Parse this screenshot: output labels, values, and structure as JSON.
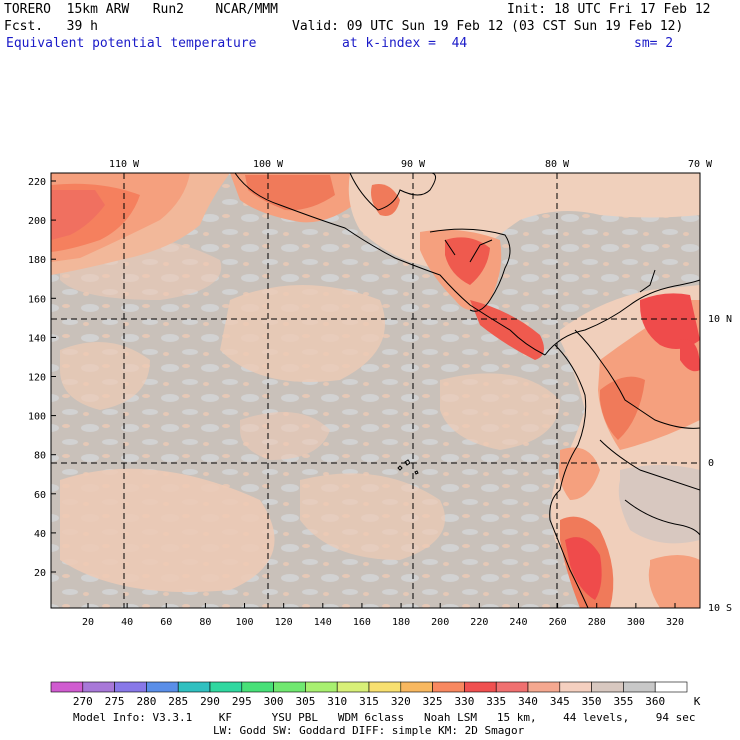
{
  "header": {
    "model": "TORERO  15km ARW   Run2    NCAR/MMM",
    "init": "Init: 18 UTC Fri 17 Feb 12",
    "fcst": "Fcst.   39 h",
    "valid": "Valid: 09 UTC Sun 19 Feb 12 (03 CST Sun 19 Feb 12)",
    "field": "Equivalent potential temperature",
    "level": "at k-index =  44",
    "smooth": "sm= 2"
  },
  "map": {
    "lon_labels": [
      "110 W",
      "100 W",
      "90 W",
      "80 W",
      "70 W"
    ],
    "lat_labels": [
      "10 N",
      "0",
      "10 S"
    ],
    "y_ticks": [
      "220",
      "200",
      "180",
      "160",
      "140",
      "120",
      "100",
      "80",
      "60",
      "40",
      "20"
    ],
    "x_ticks": [
      "20",
      "40",
      "60",
      "80",
      "100",
      "120",
      "140",
      "160",
      "180",
      "200",
      "220",
      "240",
      "260",
      "280",
      "300",
      "320"
    ],
    "colors": {
      "base_gray": "#c8c0b8",
      "light_gray": "#d0d0d0",
      "peach": "#f2cbb4",
      "salmon": "#f5a07e",
      "orange": "#f57a58",
      "red": "#ef4b4b"
    }
  },
  "colorbar": {
    "labels": [
      "270",
      "275",
      "280",
      "285",
      "290",
      "295",
      "300",
      "305",
      "310",
      "315",
      "320",
      "325",
      "330",
      "335",
      "340",
      "345",
      "350",
      "355",
      "360"
    ],
    "unit": "K",
    "colors": [
      "#d05cd0",
      "#a878d8",
      "#8878e8",
      "#5a8ee8",
      "#30c0c0",
      "#30d8a0",
      "#48e078",
      "#70e870",
      "#a8f070",
      "#d8f078",
      "#f8e070",
      "#f8b860",
      "#f88860",
      "#f05050",
      "#f07070",
      "#f5a890",
      "#f5d0c0",
      "#d8c8c0",
      "#c8c8c8",
      "#ffffff"
    ]
  },
  "footer": {
    "line1": "Model Info: V3.3.1    KF      YSU PBL   WDM 6class   Noah LSM   15 km,    44 levels,    94 sec",
    "line2": "LW: Godd SW: Goddard DIFF: simple KM: 2D Smagor"
  }
}
